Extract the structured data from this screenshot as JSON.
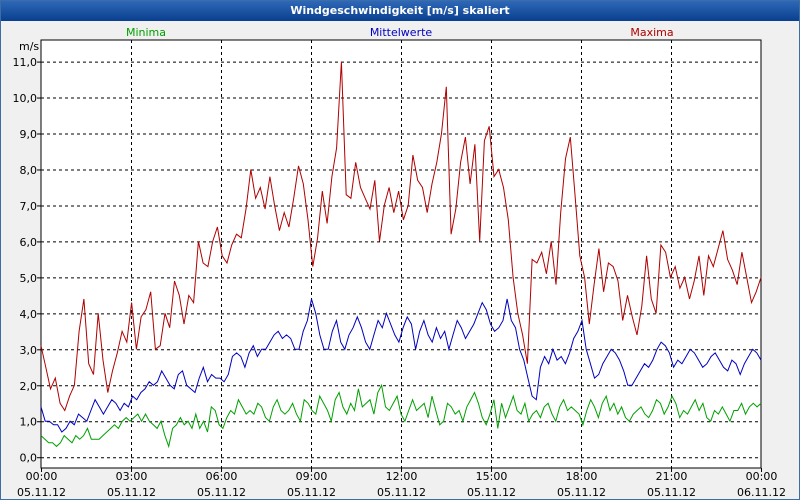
{
  "window": {
    "title": "Windgeschwindigkeit [m/s] skaliert"
  },
  "chart_data": {
    "type": "line",
    "title": "Windgeschwindigkeit [m/s] skaliert",
    "ylabel": "m/s",
    "xlabel": "",
    "ylim": [
      -0.3,
      11.6
    ],
    "xlim": [
      0,
      24
    ],
    "grid": true,
    "y_ticks": [
      "0,0",
      "1,0",
      "2,0",
      "3,0",
      "4,0",
      "5,0",
      "6,0",
      "7,0",
      "8,0",
      "9,0",
      "10,0",
      "11,0"
    ],
    "x_ticks": [
      {
        "time": "00:00",
        "date": "05.11.12"
      },
      {
        "time": "03:00",
        "date": "05.11.12"
      },
      {
        "time": "06:00",
        "date": "05.11.12"
      },
      {
        "time": "09:00",
        "date": "05.11.12"
      },
      {
        "time": "12:00",
        "date": "05.11.12"
      },
      {
        "time": "15:00",
        "date": "05.11.12"
      },
      {
        "time": "18:00",
        "date": "05.11.12"
      },
      {
        "time": "21:00",
        "date": "05.11.12"
      },
      {
        "time": "00:00",
        "date": "06.11.12"
      }
    ],
    "series": [
      {
        "name": "Minima",
        "color": "#00a000",
        "values": [
          0.6,
          0.5,
          0.4,
          0.4,
          0.3,
          0.4,
          0.6,
          0.5,
          0.4,
          0.6,
          0.5,
          0.6,
          0.8,
          0.5,
          0.5,
          0.5,
          0.6,
          0.7,
          0.8,
          0.9,
          0.8,
          1.0,
          1.1,
          1.0,
          1.1,
          1.2,
          1.0,
          1.2,
          1.0,
          0.9,
          0.8,
          1.0,
          0.6,
          0.3,
          0.8,
          0.9,
          1.1,
          0.9,
          1.0,
          0.8,
          1.2,
          0.8,
          1.0,
          0.7,
          1.4,
          1.3,
          0.9,
          0.8,
          1.1,
          1.3,
          1.2,
          1.6,
          1.4,
          1.2,
          1.3,
          1.2,
          1.5,
          1.4,
          1.1,
          1.0,
          1.4,
          1.6,
          1.3,
          1.2,
          1.3,
          1.5,
          1.2,
          1.0,
          1.6,
          1.5,
          1.3,
          1.2,
          1.7,
          1.5,
          1.3,
          1.0,
          1.6,
          1.8,
          1.4,
          1.2,
          1.5,
          1.3,
          1.9,
          1.4,
          1.5,
          1.6,
          1.2,
          1.8,
          2.0,
          1.4,
          1.3,
          1.5,
          1.7,
          1.2,
          1.0,
          1.3,
          1.6,
          1.3,
          1.4,
          1.5,
          1.1,
          1.7,
          1.3,
          0.9,
          1.0,
          1.5,
          1.4,
          1.2,
          1.3,
          1.0,
          1.4,
          1.6,
          1.8,
          1.5,
          1.1,
          0.9,
          1.2,
          1.6,
          0.8,
          1.5,
          1.1,
          1.4,
          1.7,
          1.3,
          1.2,
          1.5,
          1.0,
          1.2,
          1.3,
          1.1,
          1.4,
          1.5,
          1.2,
          1.0,
          1.4,
          1.6,
          1.3,
          1.4,
          1.3,
          1.2,
          0.9,
          1.3,
          1.6,
          1.4,
          1.1,
          1.5,
          1.7,
          1.3,
          1.5,
          1.2,
          1.4,
          1.1,
          1.0,
          1.2,
          1.3,
          1.4,
          1.2,
          1.1,
          1.3,
          1.6,
          1.5,
          1.2,
          1.4,
          1.7,
          1.5,
          1.1,
          1.3,
          1.2,
          1.4,
          1.6,
          1.3,
          1.5,
          1.1,
          1.0,
          1.3,
          1.2,
          1.4,
          1.2,
          1.0,
          1.3,
          1.3,
          1.5,
          1.2,
          1.4,
          1.5,
          1.4,
          1.5
        ]
      },
      {
        "name": "Mittelwerte",
        "color": "#0000c0",
        "values": [
          1.4,
          1.0,
          1.0,
          0.9,
          0.9,
          0.7,
          0.8,
          1.0,
          0.9,
          1.2,
          1.1,
          1.0,
          1.3,
          1.6,
          1.4,
          1.2,
          1.4,
          1.6,
          1.5,
          1.3,
          1.5,
          1.4,
          1.7,
          1.6,
          1.8,
          1.9,
          2.1,
          2.0,
          2.1,
          2.4,
          2.2,
          2.0,
          1.9,
          2.3,
          2.4,
          2.0,
          1.9,
          1.8,
          2.2,
          2.5,
          2.1,
          2.3,
          2.2,
          2.2,
          2.1,
          2.3,
          2.8,
          2.9,
          2.8,
          2.5,
          2.9,
          3.1,
          2.8,
          3.0,
          3.0,
          3.2,
          3.4,
          3.5,
          3.3,
          3.4,
          3.3,
          3.0,
          3.0,
          3.5,
          3.8,
          4.4,
          4.0,
          3.4,
          3.0,
          3.0,
          3.5,
          3.8,
          3.2,
          3.0,
          3.4,
          3.6,
          3.9,
          3.6,
          3.2,
          3.0,
          3.4,
          3.8,
          3.6,
          4.0,
          3.7,
          3.4,
          3.2,
          3.6,
          3.9,
          3.7,
          3.0,
          3.5,
          3.8,
          3.4,
          3.2,
          3.6,
          3.3,
          3.5,
          3.0,
          3.4,
          3.8,
          3.6,
          3.3,
          3.5,
          3.7,
          4.0,
          4.3,
          4.1,
          3.7,
          3.5,
          3.6,
          3.8,
          4.4,
          3.8,
          3.6,
          3.0,
          2.7,
          2.2,
          1.7,
          1.6,
          2.5,
          2.8,
          2.6,
          3.0,
          2.7,
          2.8,
          2.6,
          2.9,
          3.3,
          3.5,
          3.8,
          3.0,
          2.6,
          2.2,
          2.3,
          2.6,
          2.8,
          3.0,
          2.9,
          2.7,
          2.4,
          2.0,
          2.0,
          2.2,
          2.4,
          2.6,
          2.5,
          2.7,
          3.0,
          3.2,
          3.1,
          2.9,
          2.5,
          2.7,
          2.6,
          2.8,
          3.0,
          2.9,
          2.7,
          2.5,
          2.6,
          2.8,
          2.9,
          2.7,
          2.5,
          2.4,
          2.7,
          2.6,
          2.3,
          2.6,
          2.8,
          3.0,
          2.9,
          2.7
        ]
      },
      {
        "name": "Maxima",
        "color": "#b00000",
        "values": [
          3.1,
          2.5,
          1.9,
          2.2,
          1.5,
          1.3,
          1.7,
          2.0,
          3.5,
          4.4,
          2.6,
          2.3,
          4.0,
          2.7,
          1.8,
          2.4,
          2.9,
          3.5,
          3.2,
          4.3,
          3.0,
          3.9,
          4.1,
          4.6,
          3.0,
          3.1,
          4.0,
          3.6,
          4.9,
          4.5,
          3.7,
          4.5,
          4.3,
          6.0,
          5.4,
          5.3,
          6.0,
          6.4,
          5.6,
          5.4,
          5.9,
          6.2,
          6.1,
          6.9,
          8.0,
          7.2,
          7.5,
          6.9,
          7.8,
          7.0,
          6.3,
          6.8,
          6.4,
          7.2,
          8.1,
          7.6,
          6.6,
          5.3,
          6.1,
          7.4,
          6.5,
          7.8,
          8.6,
          11.0,
          7.3,
          7.2,
          8.2,
          7.5,
          7.2,
          6.9,
          7.7,
          6.0,
          7.0,
          7.5,
          6.8,
          7.4,
          6.6,
          7.0,
          8.4,
          7.7,
          7.5,
          6.8,
          7.6,
          8.2,
          9.0,
          10.3,
          6.2,
          6.9,
          8.2,
          8.9,
          7.6,
          8.7,
          6.0,
          8.8,
          9.2,
          7.8,
          8.0,
          7.5,
          6.6,
          5.0,
          4.0,
          3.4,
          2.6,
          5.5,
          5.4,
          5.7,
          5.1,
          6.0,
          4.8,
          6.8,
          8.3,
          8.9,
          7.3,
          5.6,
          5.0,
          3.7,
          4.8,
          5.8,
          4.6,
          5.4,
          5.3,
          4.9,
          3.8,
          4.5,
          3.9,
          3.4,
          4.2,
          5.6,
          4.4,
          4.0,
          5.9,
          5.7,
          5.0,
          5.3,
          4.7,
          5.0,
          4.4,
          4.9,
          5.6,
          4.5,
          5.6,
          5.3,
          5.8,
          6.3,
          5.5,
          5.2,
          4.8,
          5.7,
          5.0,
          4.3,
          4.6,
          5.0
        ]
      }
    ]
  }
}
